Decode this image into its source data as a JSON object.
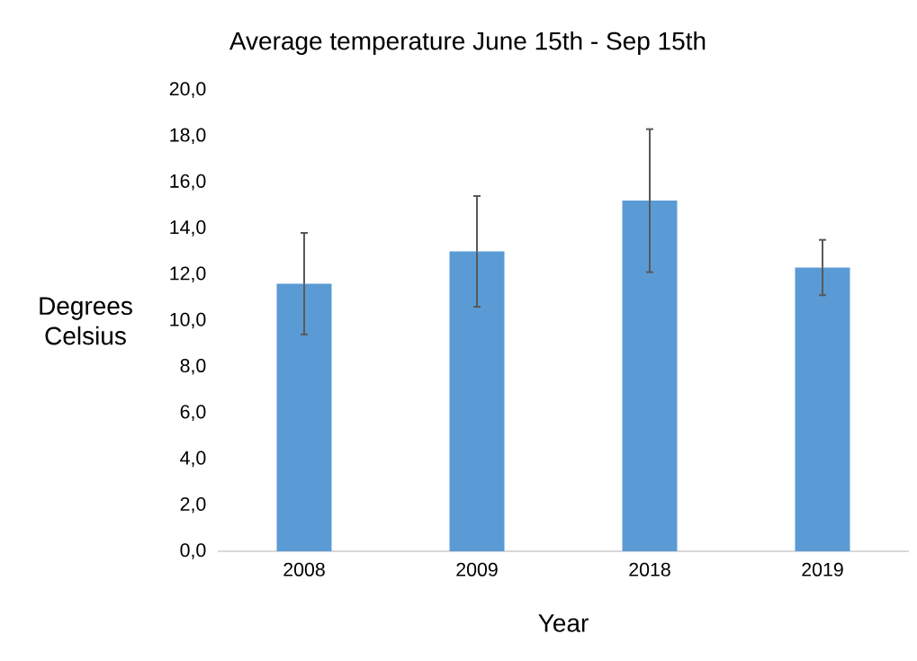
{
  "chart_data": {
    "type": "bar",
    "title": "Average temperature June 15th - Sep 15th",
    "xlabel": "Year",
    "ylabel": "Degrees Celsius",
    "categories": [
      "2008",
      "2009",
      "2018",
      "2019"
    ],
    "values": [
      11.6,
      13.0,
      15.2,
      12.3
    ],
    "errors": [
      2.2,
      2.4,
      3.1,
      1.2
    ],
    "color": "#5b9bd5",
    "ylim": [
      0,
      20
    ],
    "yticks": [
      {
        "value": 0,
        "label": "0,0"
      },
      {
        "value": 2,
        "label": "2,0"
      },
      {
        "value": 4,
        "label": "4,0"
      },
      {
        "value": 6,
        "label": "6,0"
      },
      {
        "value": 8,
        "label": "8,0"
      },
      {
        "value": 10,
        "label": "10,0"
      },
      {
        "value": 12,
        "label": "12,0"
      },
      {
        "value": 14,
        "label": "14,0"
      },
      {
        "value": 16,
        "label": "16,0"
      },
      {
        "value": 18,
        "label": "18,0"
      },
      {
        "value": 20,
        "label": "20,0"
      }
    ],
    "grid": false
  }
}
